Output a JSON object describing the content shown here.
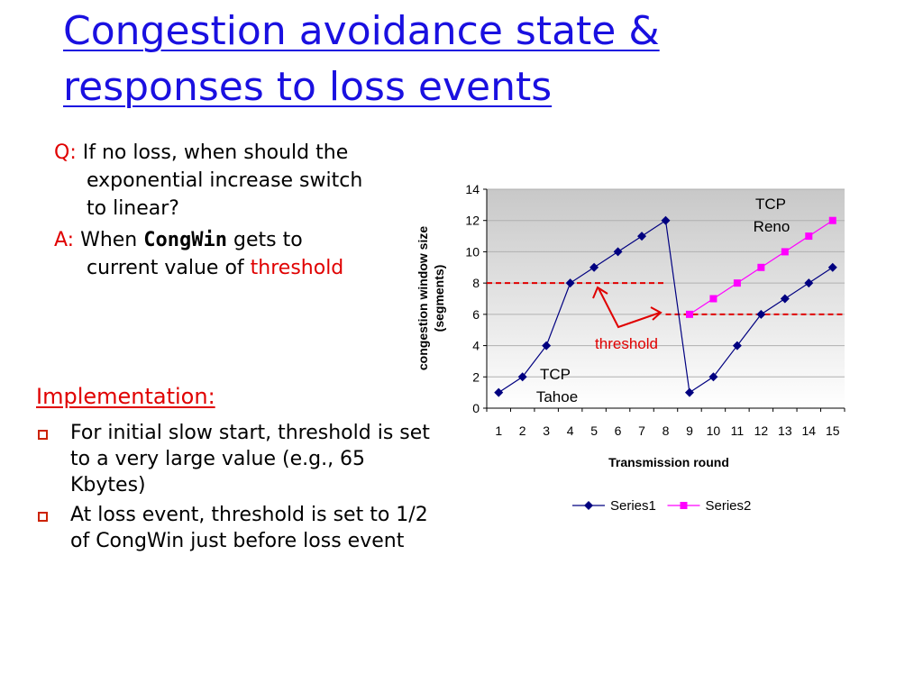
{
  "title": {
    "line1": "Congestion avoidance state &",
    "line2": "responses to loss events"
  },
  "qa": {
    "q_label": "Q:",
    "q_text": "If no loss, when should the exponential increase switch to linear?",
    "a_label": "A:",
    "a_text_before": "When",
    "a_code": "CongWin",
    "a_text_after": "gets to current value of",
    "a_highlight": "threshold"
  },
  "implementation": {
    "heading": "Implementation:",
    "bullets": [
      "For initial slow start, threshold is set to a very large value (e.g., 65 Kbytes)",
      "At loss event, threshold is set to 1/2 of CongWin just before loss event"
    ]
  },
  "chart_data": {
    "type": "line",
    "x": [
      1,
      2,
      3,
      4,
      5,
      6,
      7,
      8,
      9,
      10,
      11,
      12,
      13,
      14,
      15
    ],
    "xlabel": "Transmission round",
    "ylabel_line1": "congestion window size",
    "ylabel_line2": "(segments)",
    "ylim": [
      0,
      14
    ],
    "yticks": [
      0,
      2,
      4,
      6,
      8,
      10,
      12,
      14
    ],
    "grid": true,
    "legend_position": "bottom",
    "series": [
      {
        "name": "Series1",
        "color": "#000080",
        "marker": "diamond",
        "values": [
          1,
          2,
          4,
          8,
          9,
          10,
          11,
          12,
          1,
          2,
          4,
          6,
          7,
          8,
          9
        ]
      },
      {
        "name": "Series2",
        "color": "#ff00ff",
        "marker": "square",
        "values": [
          null,
          null,
          null,
          null,
          null,
          null,
          null,
          null,
          6,
          7,
          8,
          9,
          10,
          11,
          12
        ]
      }
    ],
    "threshold_lines": [
      {
        "y": 8,
        "x_from": 0.5,
        "x_to": 8.0,
        "color": "#e00000"
      },
      {
        "y": 6,
        "x_from": 8.0,
        "x_to": 15.5,
        "color": "#e00000"
      }
    ],
    "annotations": {
      "tcp_reno": [
        "TCP",
        "Reno"
      ],
      "tcp_tahoe": [
        "TCP",
        "Tahoe"
      ],
      "threshold": "threshold"
    }
  }
}
